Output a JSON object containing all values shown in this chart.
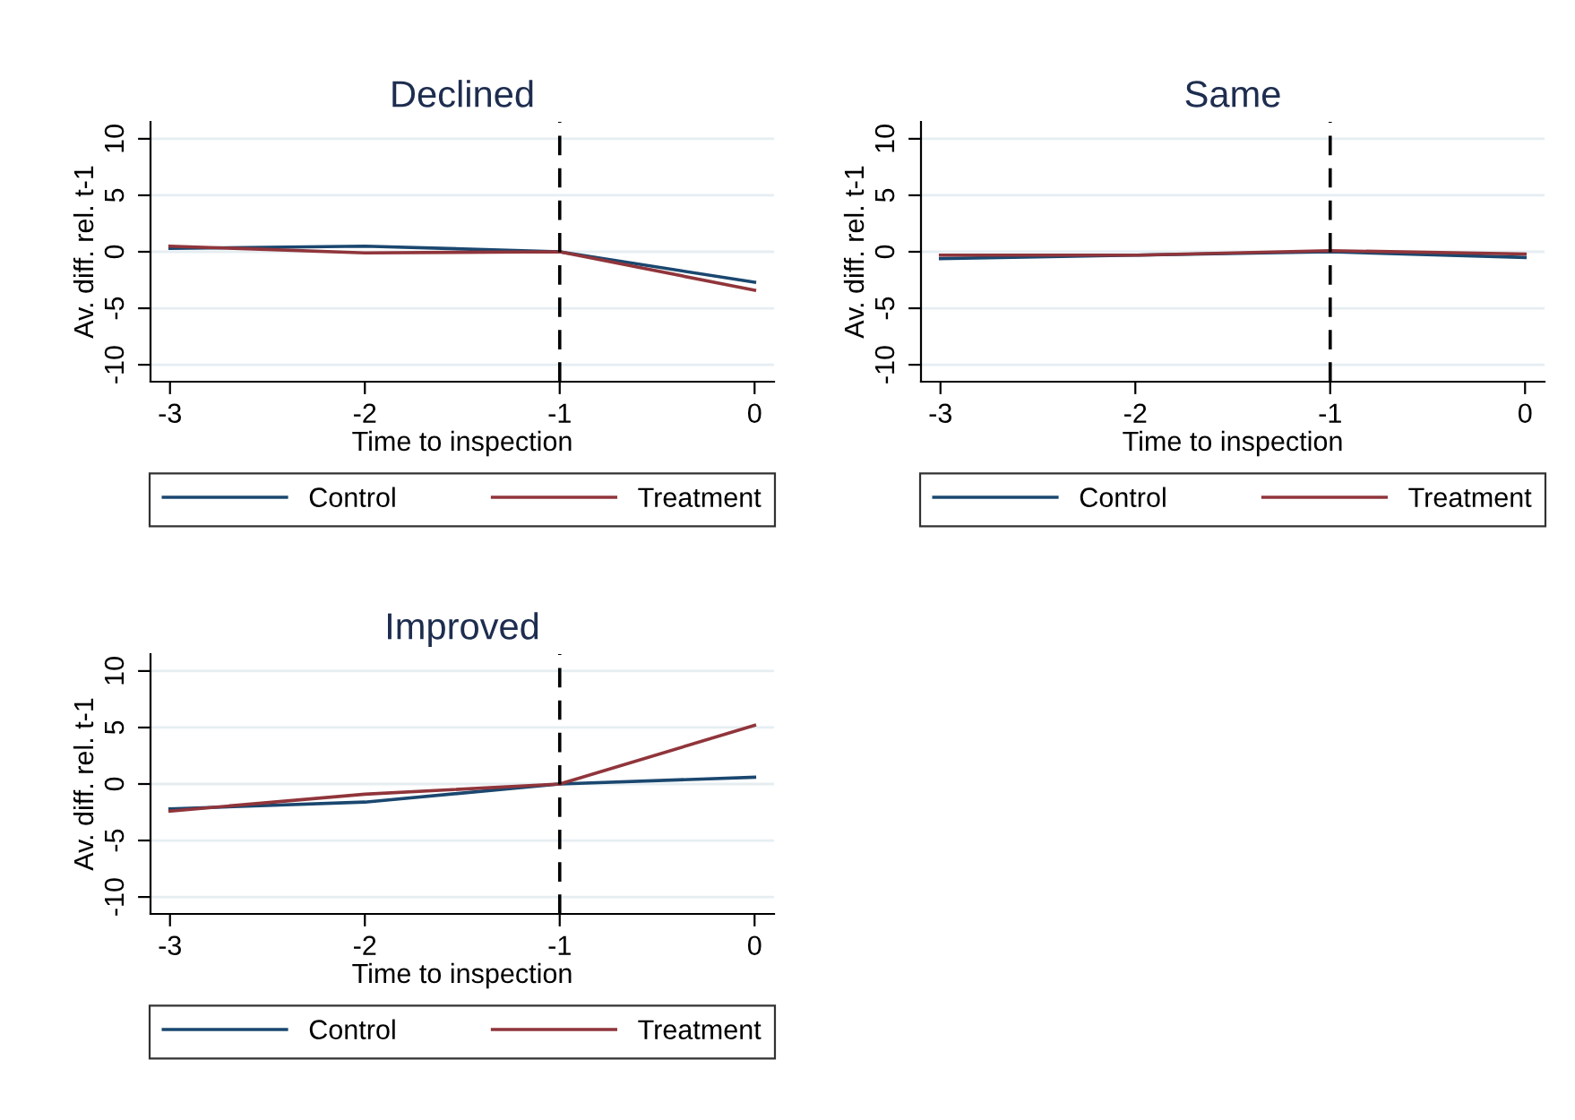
{
  "chart_data": [
    {
      "type": "line",
      "title": "Declined",
      "xlabel": "Time to inspection",
      "ylabel": "Av. diff. rel. t-1",
      "x": [
        -3,
        -2,
        -1,
        0
      ],
      "xlim": [
        -3.1,
        0.1
      ],
      "xticks": [
        -3,
        -2,
        -1,
        0
      ],
      "ylim": [
        -11.5,
        11.5
      ],
      "yticks": [
        -10,
        -5,
        0,
        5,
        10
      ],
      "grid": "y",
      "legend": "bottom",
      "line_style": "solid",
      "ref_lines": [
        {
          "axis": "x",
          "value": -1,
          "color": "#000000",
          "line_style": "dashed"
        }
      ],
      "series": [
        {
          "name": "Control",
          "color": "#1a476f",
          "values": [
            0.3,
            0.5,
            0,
            -2.7
          ]
        },
        {
          "name": "Treatment",
          "color": "#90353b",
          "values": [
            0.5,
            -0.1,
            0,
            -3.4
          ]
        }
      ]
    },
    {
      "type": "line",
      "title": "Same",
      "xlabel": "Time to inspection",
      "ylabel": "Av. diff. rel. t-1",
      "x": [
        -3,
        -2,
        -1,
        0
      ],
      "xlim": [
        -3.1,
        0.1
      ],
      "xticks": [
        -3,
        -2,
        -1,
        0
      ],
      "ylim": [
        -11.5,
        11.5
      ],
      "yticks": [
        -10,
        -5,
        0,
        5,
        10
      ],
      "grid": "y",
      "legend": "bottom",
      "line_style": "solid",
      "ref_lines": [
        {
          "axis": "x",
          "value": -1,
          "color": "#000000",
          "line_style": "dashed"
        }
      ],
      "series": [
        {
          "name": "Control",
          "color": "#1a476f",
          "values": [
            -0.6,
            -0.3,
            0,
            -0.5
          ]
        },
        {
          "name": "Treatment",
          "color": "#90353b",
          "values": [
            -0.3,
            -0.3,
            0.1,
            -0.2
          ]
        }
      ]
    },
    {
      "type": "line",
      "title": "Improved",
      "xlabel": "Time to inspection",
      "ylabel": "Av. diff. rel. t-1",
      "x": [
        -3,
        -2,
        -1,
        0
      ],
      "xlim": [
        -3.1,
        0.1
      ],
      "xticks": [
        -3,
        -2,
        -1,
        0
      ],
      "ylim": [
        -11.5,
        11.5
      ],
      "yticks": [
        -10,
        -5,
        0,
        5,
        10
      ],
      "grid": "y",
      "legend": "bottom",
      "line_style": "solid",
      "ref_lines": [
        {
          "axis": "x",
          "value": -1,
          "color": "#000000",
          "line_style": "dashed"
        }
      ],
      "series": [
        {
          "name": "Control",
          "color": "#1a476f",
          "values": [
            -2.2,
            -1.6,
            0,
            0.6
          ]
        },
        {
          "name": "Treatment",
          "color": "#90353b",
          "values": [
            -2.4,
            -0.9,
            0,
            5.2
          ]
        }
      ]
    }
  ]
}
